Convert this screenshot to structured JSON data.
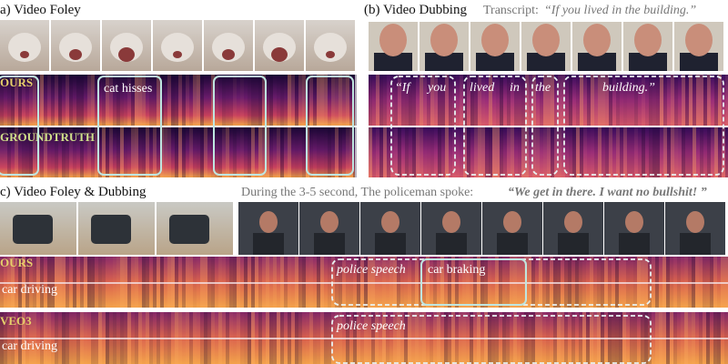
{
  "panel_a": {
    "title": "a) Video Foley",
    "rows": [
      "OURS",
      "GROUNDTRUTH"
    ],
    "annotation": "cat hisses"
  },
  "panel_b": {
    "title": "(b) Video Dubbing",
    "transcript_label": "Transcript:",
    "transcript": "“If you lived in the building.”",
    "words": [
      "“If",
      "you",
      "lived",
      "in",
      "the",
      "building.”"
    ]
  },
  "panel_c": {
    "title": "c) Video Foley & Dubbing",
    "caption": "During the 3-5 second, The policeman spoke:",
    "quote": "“We get in there. I want no bullshit! ”",
    "rows": [
      {
        "label": "OURS",
        "annotations": [
          "police speech",
          "car braking",
          "car driving"
        ]
      },
      {
        "label": "VEO3",
        "annotations": [
          "police speech",
          "car driving"
        ]
      }
    ]
  }
}
